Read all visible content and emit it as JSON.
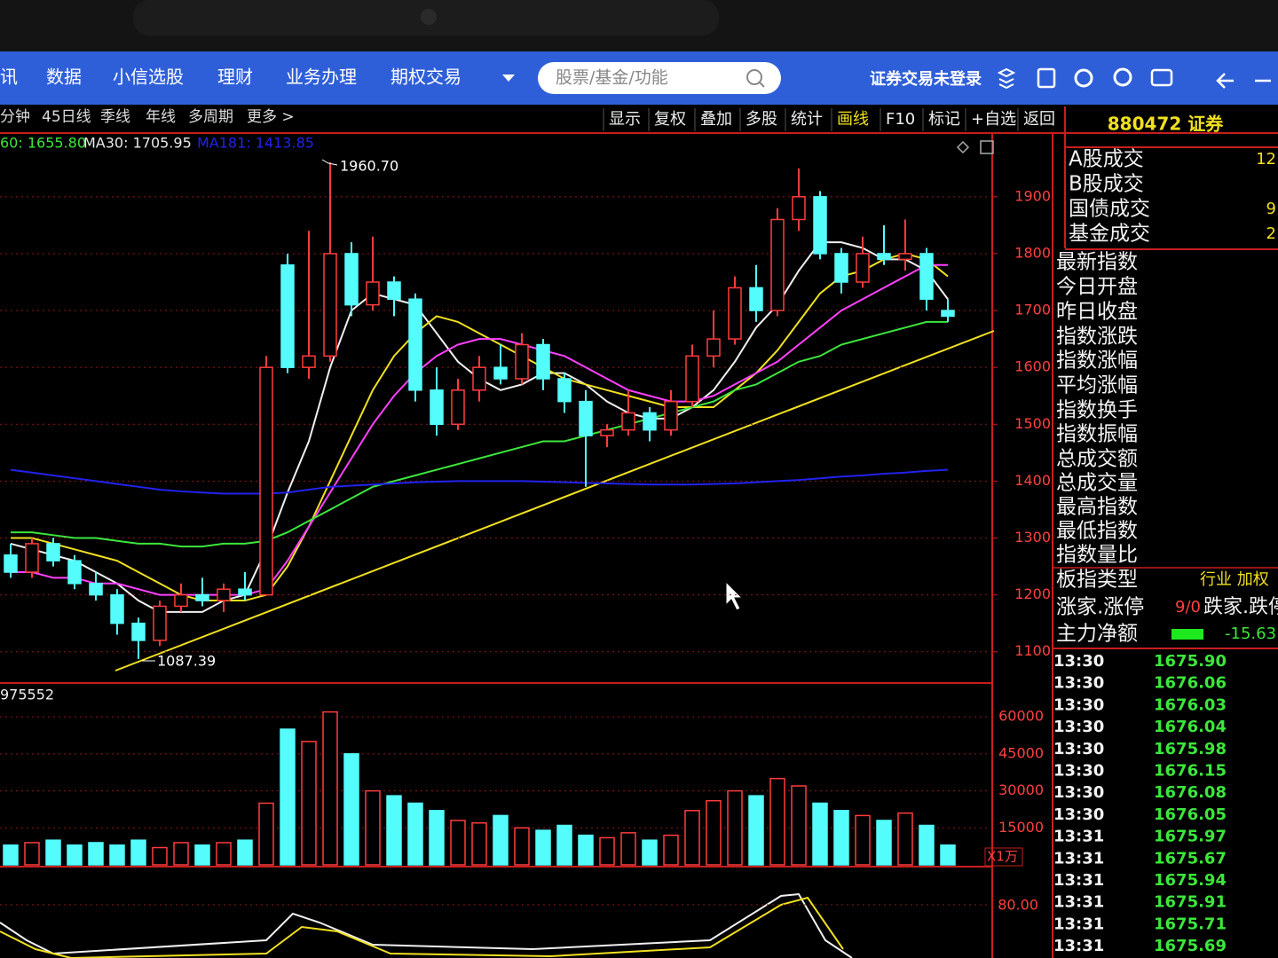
{
  "menu": [
    "讯",
    "数据",
    "小信选股",
    "理财",
    "业务办理",
    "期权交易"
  ],
  "search_placeholder": "股票/基金/功能",
  "login_status": "证券交易未登录",
  "period_tabs": [
    "分钟",
    "45日线",
    "季线",
    "年线",
    "多周期",
    "更多 >"
  ],
  "toolbar": [
    "显示",
    "复权",
    "叠加",
    "多股",
    "统计",
    "画线",
    "F10",
    "标记",
    "+自选",
    "返回"
  ],
  "ma_labels": [
    {
      "text": "60: 1655.80",
      "color": "#3ce63c"
    },
    {
      "text": "MA30: 1705.95",
      "color": "#e8e8e8"
    },
    {
      "text": "MA181: 1413.85",
      "color": "#2222ee"
    }
  ],
  "kline": {
    "ylim": [
      1045,
      1998
    ],
    "yticks": [
      1100,
      1200,
      1300,
      1400,
      1500,
      1600,
      1700,
      1800,
      1900
    ],
    "up_color": "#ff3c3c",
    "down_color": "#54fcfc",
    "annotations": [
      "1960.70",
      "1087.39"
    ],
    "candles": [
      {
        "o": 1270,
        "h": 1290,
        "l": 1230,
        "c": 1240
      },
      {
        "o": 1240,
        "h": 1300,
        "l": 1230,
        "c": 1290
      },
      {
        "o": 1290,
        "h": 1300,
        "l": 1250,
        "c": 1260
      },
      {
        "o": 1260,
        "h": 1270,
        "l": 1210,
        "c": 1220
      },
      {
        "o": 1220,
        "h": 1240,
        "l": 1190,
        "c": 1200
      },
      {
        "o": 1200,
        "h": 1210,
        "l": 1130,
        "c": 1150
      },
      {
        "o": 1150,
        "h": 1160,
        "l": 1087.39,
        "c": 1120
      },
      {
        "o": 1120,
        "h": 1190,
        "l": 1110,
        "c": 1180
      },
      {
        "o": 1180,
        "h": 1220,
        "l": 1170,
        "c": 1200
      },
      {
        "o": 1200,
        "h": 1230,
        "l": 1180,
        "c": 1190
      },
      {
        "o": 1190,
        "h": 1220,
        "l": 1170,
        "c": 1210
      },
      {
        "o": 1210,
        "h": 1240,
        "l": 1190,
        "c": 1200
      },
      {
        "o": 1200,
        "h": 1620,
        "l": 1200,
        "c": 1600
      },
      {
        "o": 1780,
        "h": 1800,
        "l": 1590,
        "c": 1600
      },
      {
        "o": 1600,
        "h": 1840,
        "l": 1580,
        "c": 1620
      },
      {
        "o": 1620,
        "h": 1960.7,
        "l": 1610,
        "c": 1800
      },
      {
        "o": 1800,
        "h": 1820,
        "l": 1690,
        "c": 1710
      },
      {
        "o": 1710,
        "h": 1830,
        "l": 1700,
        "c": 1750
      },
      {
        "o": 1750,
        "h": 1760,
        "l": 1690,
        "c": 1720
      },
      {
        "o": 1720,
        "h": 1730,
        "l": 1540,
        "c": 1560
      },
      {
        "o": 1560,
        "h": 1600,
        "l": 1480,
        "c": 1500
      },
      {
        "o": 1500,
        "h": 1580,
        "l": 1490,
        "c": 1560
      },
      {
        "o": 1560,
        "h": 1620,
        "l": 1540,
        "c": 1600
      },
      {
        "o": 1600,
        "h": 1640,
        "l": 1570,
        "c": 1580
      },
      {
        "o": 1580,
        "h": 1660,
        "l": 1570,
        "c": 1640
      },
      {
        "o": 1640,
        "h": 1650,
        "l": 1560,
        "c": 1580
      },
      {
        "o": 1580,
        "h": 1590,
        "l": 1520,
        "c": 1540
      },
      {
        "o": 1540,
        "h": 1560,
        "l": 1390,
        "c": 1480
      },
      {
        "o": 1480,
        "h": 1500,
        "l": 1460,
        "c": 1490
      },
      {
        "o": 1490,
        "h": 1560,
        "l": 1480,
        "c": 1520
      },
      {
        "o": 1520,
        "h": 1530,
        "l": 1470,
        "c": 1490
      },
      {
        "o": 1490,
        "h": 1560,
        "l": 1480,
        "c": 1540
      },
      {
        "o": 1540,
        "h": 1640,
        "l": 1530,
        "c": 1620
      },
      {
        "o": 1620,
        "h": 1700,
        "l": 1600,
        "c": 1650
      },
      {
        "o": 1650,
        "h": 1760,
        "l": 1640,
        "c": 1740
      },
      {
        "o": 1740,
        "h": 1780,
        "l": 1680,
        "c": 1700
      },
      {
        "o": 1700,
        "h": 1880,
        "l": 1690,
        "c": 1860
      },
      {
        "o": 1860,
        "h": 1950,
        "l": 1840,
        "c": 1900
      },
      {
        "o": 1900,
        "h": 1910,
        "l": 1790,
        "c": 1800
      },
      {
        "o": 1800,
        "h": 1810,
        "l": 1730,
        "c": 1750
      },
      {
        "o": 1750,
        "h": 1830,
        "l": 1740,
        "c": 1800
      },
      {
        "o": 1800,
        "h": 1850,
        "l": 1780,
        "c": 1790
      },
      {
        "o": 1790,
        "h": 1860,
        "l": 1770,
        "c": 1800
      },
      {
        "o": 1800,
        "h": 1810,
        "l": 1700,
        "c": 1720
      },
      {
        "o": 1700,
        "h": 1720,
        "l": 1680,
        "c": 1690
      }
    ],
    "ma": [
      {
        "color": "#f0f0f0",
        "values": [
          1290,
          1280,
          1270,
          1260,
          1240,
          1220,
          1190,
          1170,
          1170,
          1170,
          1190,
          1200,
          1280,
          1380,
          1470,
          1600,
          1700,
          1730,
          1720,
          1710,
          1660,
          1610,
          1580,
          1560,
          1570,
          1590,
          1590,
          1570,
          1540,
          1520,
          1510,
          1510,
          1530,
          1560,
          1610,
          1670,
          1710,
          1770,
          1820,
          1820,
          1810,
          1790,
          1790,
          1770,
          1720
        ]
      },
      {
        "color": "#f0e020",
        "values": [
          1300,
          1300,
          1290,
          1280,
          1270,
          1260,
          1240,
          1220,
          1200,
          1190,
          1190,
          1190,
          1200,
          1250,
          1320,
          1400,
          1480,
          1560,
          1620,
          1660,
          1690,
          1680,
          1660,
          1640,
          1620,
          1600,
          1580,
          1570,
          1560,
          1550,
          1540,
          1530,
          1530,
          1530,
          1560,
          1590,
          1630,
          1680,
          1730,
          1760,
          1770,
          1790,
          1800,
          1790,
          1760
        ]
      },
      {
        "color": "#ff40ff",
        "values": [
          1240,
          1240,
          1230,
          1230,
          1220,
          1220,
          1210,
          1200,
          1200,
          1200,
          1200,
          1200,
          1210,
          1260,
          1320,
          1380,
          1440,
          1500,
          1550,
          1590,
          1620,
          1640,
          1650,
          1650,
          1640,
          1630,
          1620,
          1600,
          1580,
          1560,
          1550,
          1540,
          1540,
          1550,
          1570,
          1590,
          1610,
          1640,
          1670,
          1700,
          1720,
          1740,
          1760,
          1780,
          1780
        ]
      },
      {
        "color": "#3ce63c",
        "values": [
          1310,
          1310,
          1305,
          1300,
          1300,
          1295,
          1290,
          1290,
          1285,
          1285,
          1290,
          1290,
          1295,
          1310,
          1330,
          1350,
          1370,
          1390,
          1400,
          1410,
          1420,
          1430,
          1440,
          1450,
          1460,
          1470,
          1470,
          1480,
          1490,
          1500,
          1510,
          1520,
          1530,
          1540,
          1560,
          1570,
          1590,
          1610,
          1620,
          1640,
          1650,
          1660,
          1670,
          1680,
          1680
        ]
      },
      {
        "color": "#2222ee",
        "values": [
          1420,
          1415,
          1410,
          1405,
          1400,
          1395,
          1390,
          1385,
          1382,
          1380,
          1378,
          1378,
          1378,
          1380,
          1385,
          1390,
          1392,
          1394,
          1396,
          1398,
          1399,
          1400,
          1400,
          1400,
          1400,
          1399,
          1398,
          1397,
          1396,
          1395,
          1394,
          1394,
          1394,
          1395,
          1396,
          1398,
          1400,
          1402,
          1405,
          1408,
          1410,
          1413,
          1415,
          1418,
          1420
        ]
      }
    ]
  },
  "volume": {
    "label": "975552",
    "unit": "X1万",
    "ylim": [
      0,
      73000
    ],
    "yticks": [
      15000,
      30000,
      45000,
      60000
    ],
    "values": [
      8000,
      9000,
      10000,
      8000,
      9000,
      8000,
      10000,
      7000,
      9000,
      8000,
      9000,
      10000,
      25000,
      55000,
      50000,
      62000,
      45000,
      30000,
      28000,
      25000,
      22000,
      18000,
      17000,
      20000,
      15000,
      14000,
      16000,
      12000,
      11000,
      13000,
      10000,
      12000,
      22000,
      26000,
      30000,
      28000,
      35000,
      32000,
      25000,
      22000,
      20000,
      18000,
      21000,
      16000,
      8000
    ]
  },
  "indicator": {
    "yticks": [
      {
        "value": 80,
        "label": "80.00"
      }
    ]
  },
  "quote": {
    "title": "880472 证券",
    "fields": [
      {
        "label": "A股成交",
        "value": "12"
      },
      {
        "label": "B股成交"
      },
      {
        "label": "国债成交",
        "value": "9"
      },
      {
        "label": "基金成交",
        "value": "2"
      },
      {
        "label": "最新指数"
      },
      {
        "label": "今日开盘"
      },
      {
        "label": "昨日收盘"
      },
      {
        "label": "指数涨跌"
      },
      {
        "label": "指数涨幅"
      },
      {
        "label": "平均涨幅"
      },
      {
        "label": "指数换手"
      },
      {
        "label": "指数振幅"
      },
      {
        "label": "总成交额"
      },
      {
        "label": "总成交量"
      },
      {
        "label": "最高指数"
      },
      {
        "label": "最低指数"
      },
      {
        "label": "指数量比"
      },
      {
        "label": "板指类型",
        "value": "行业 加权"
      },
      {
        "label": "涨家.涨停",
        "value": "9/0",
        "extra": "跌家.跌停"
      },
      {
        "label": "主力净额",
        "value": "-15.63"
      }
    ],
    "ticks": [
      {
        "time": "13:30",
        "price": "1675.90"
      },
      {
        "time": "13:30",
        "price": "1676.06"
      },
      {
        "time": "13:30",
        "price": "1676.03"
      },
      {
        "time": "13:30",
        "price": "1676.04"
      },
      {
        "time": "13:30",
        "price": "1675.98"
      },
      {
        "time": "13:30",
        "price": "1676.15"
      },
      {
        "time": "13:30",
        "price": "1676.08"
      },
      {
        "time": "13:30",
        "price": "1676.05"
      },
      {
        "time": "13:31",
        "price": "1675.97"
      },
      {
        "time": "13:31",
        "price": "1675.67"
      },
      {
        "time": "13:31",
        "price": "1675.94"
      },
      {
        "time": "13:31",
        "price": "1675.91"
      },
      {
        "time": "13:31",
        "price": "1675.71"
      },
      {
        "time": "13:31",
        "price": "1675.69"
      }
    ]
  }
}
